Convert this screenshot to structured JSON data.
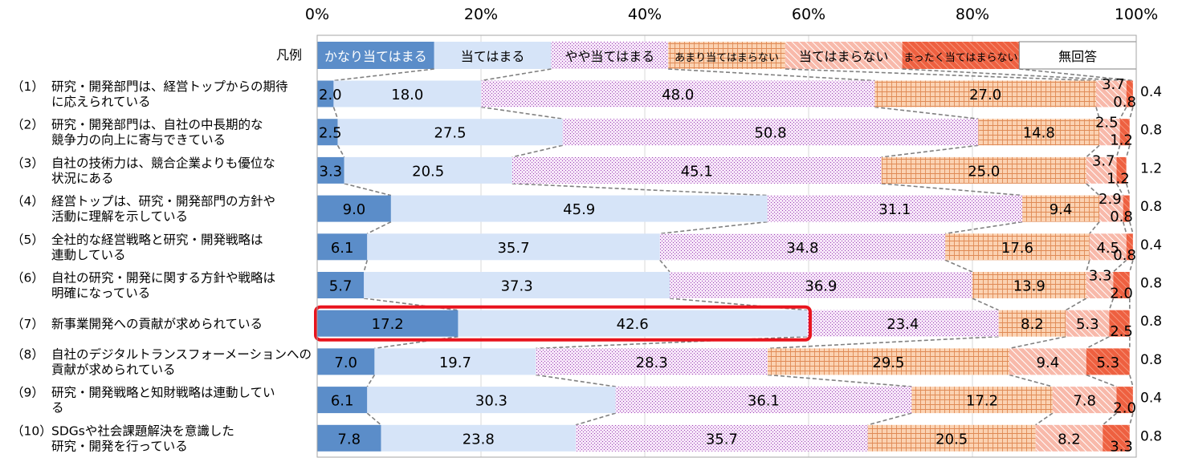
{
  "chart_data": {
    "type": "bar",
    "orientation": "horizontal",
    "stacked": "percent",
    "legend_title": "凡例",
    "x_ticks": [
      "0%",
      "20%",
      "40%",
      "60%",
      "80%",
      "100%"
    ],
    "xlim": [
      0,
      100
    ],
    "legend_placement": "top",
    "series": [
      {
        "name": "かなり当てはまる",
        "color": "#5b8dc9",
        "pattern": "solid"
      },
      {
        "name": "当てはまる",
        "color": "#d6e4f8",
        "pattern": "solid"
      },
      {
        "name": "やや当てはまる",
        "color": "#f4e2f6",
        "pattern": "dots-purple"
      },
      {
        "name": "あまり当てはまらない",
        "color": "#fbcfae",
        "pattern": "grid-orange"
      },
      {
        "name": "当てはまらない",
        "color": "#f8b4a4",
        "pattern": "diagonal-light"
      },
      {
        "name": "まったく当てはまらない",
        "color": "#ee5f3c",
        "pattern": "diagonal-dark"
      },
      {
        "name": "無回答",
        "color": "#ffffff",
        "pattern": "solid"
      }
    ],
    "categories": [
      {
        "number": "（1）",
        "lines": [
          "研究・開発部門は、経営トップからの期待",
          "に応えられている"
        ],
        "values": [
          2.0,
          18.0,
          48.0,
          27.0,
          3.7,
          0.8,
          0.4
        ],
        "labels": [
          "2.0",
          "18.0",
          "48.0",
          "27.0",
          "3.7",
          "0.8",
          "0.4"
        ]
      },
      {
        "number": "（2）",
        "lines": [
          "研究・開発部門は、自社の中長期的な",
          "競争力の向上に寄与できている"
        ],
        "values": [
          2.5,
          27.5,
          50.8,
          14.8,
          2.5,
          1.2,
          0.8
        ],
        "labels": [
          "2.5",
          "27.5",
          "50.8",
          "14.8",
          "2.5",
          "1.2",
          "0.8"
        ]
      },
      {
        "number": "（3）",
        "lines": [
          "自社の技術力は、競合企業よりも優位な",
          "状況にある"
        ],
        "values": [
          3.3,
          20.5,
          45.1,
          25.0,
          3.7,
          1.2,
          1.2
        ],
        "labels": [
          "3.3",
          "20.5",
          "45.1",
          "25.0",
          "3.7",
          "1.2",
          "1.2"
        ]
      },
      {
        "number": "（4）",
        "lines": [
          "経営トップは、研究・開発部門の方針や",
          "活動に理解を示している"
        ],
        "values": [
          9.0,
          45.9,
          31.1,
          9.4,
          2.9,
          0.8,
          0.8
        ],
        "labels": [
          "9.0",
          "45.9",
          "31.1",
          "9.4",
          "2.9",
          "0.8",
          "0.8"
        ]
      },
      {
        "number": "（5）",
        "lines": [
          "全社的な経営戦略と研究・開発戦略は",
          "連動している"
        ],
        "values": [
          6.1,
          35.7,
          34.8,
          17.6,
          4.5,
          0.8,
          0.4
        ],
        "labels": [
          "6.1",
          "35.7",
          "34.8",
          "17.6",
          "4.5",
          "0.8",
          "0.4"
        ]
      },
      {
        "number": "（6）",
        "lines": [
          "自社の研究・開発に関する方針や戦略は",
          "明確になっている"
        ],
        "values": [
          5.7,
          37.3,
          36.9,
          13.9,
          3.3,
          2.0,
          0.8
        ],
        "labels": [
          "5.7",
          "37.3",
          "36.9",
          "13.9",
          "3.3",
          "2.0",
          "0.8"
        ]
      },
      {
        "number": "（7）",
        "lines": [
          "新事業開発への貢献が求められている"
        ],
        "values": [
          17.2,
          42.6,
          23.4,
          8.2,
          5.3,
          2.5,
          0.8
        ],
        "labels": [
          "17.2",
          "42.6",
          "23.4",
          "8.2",
          "5.3",
          "2.5",
          "0.8"
        ],
        "highlight": true
      },
      {
        "number": "（8）",
        "lines": [
          "自社のデジタルトランスフォーメーションへの",
          "貢献が求められている"
        ],
        "values": [
          7.0,
          19.7,
          28.3,
          29.5,
          9.4,
          5.3,
          0.8
        ],
        "labels": [
          "7.0",
          "19.7",
          "28.3",
          "29.5",
          "9.4",
          "5.3",
          "0.8"
        ]
      },
      {
        "number": "（9）",
        "lines": [
          "研究・開発戦略と知財戦略は連動してい",
          "る"
        ],
        "values": [
          6.1,
          30.3,
          36.1,
          17.2,
          7.8,
          2.0,
          0.4
        ],
        "labels": [
          "6.1",
          "30.3",
          "36.1",
          "17.2",
          "7.8",
          "2.0",
          "0.4"
        ]
      },
      {
        "number": "（10）",
        "lines": [
          " SDGsや社会課題解決を意識した",
          "研究・開発を行っている"
        ],
        "values": [
          7.8,
          23.8,
          35.7,
          20.5,
          8.2,
          3.3,
          0.8
        ],
        "labels": [
          "7.8",
          "23.8",
          "35.7",
          "20.5",
          "8.2",
          "3.3",
          "0.8"
        ]
      }
    ]
  }
}
